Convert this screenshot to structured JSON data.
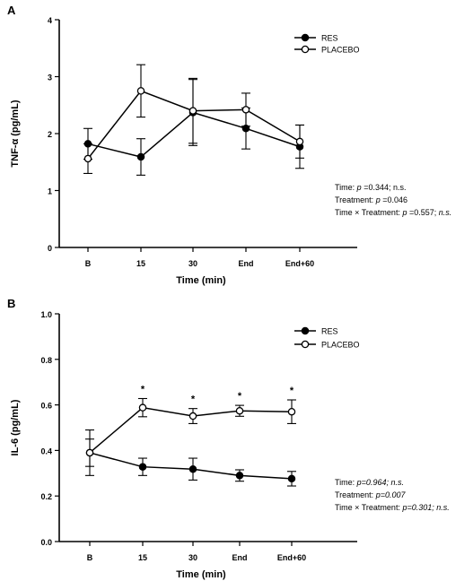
{
  "chart_data": [
    {
      "panel_label": "A",
      "type": "line",
      "ylabel": "TNF-α (pg/mL)",
      "xlabel": "Time (min)",
      "categories": [
        "B",
        "15",
        "30",
        "End",
        "End+60"
      ],
      "ylim": [
        0,
        4
      ],
      "yticks": [
        "0",
        "1",
        "2",
        "3",
        "4"
      ],
      "series": [
        {
          "name": "RES",
          "marker": "filled",
          "values": [
            1.82,
            1.59,
            2.37,
            2.09,
            1.77
          ],
          "errors": [
            0.27,
            0.32,
            0.58,
            0.36,
            0.38
          ]
        },
        {
          "name": "PLACEBO",
          "marker": "open",
          "values": [
            1.56,
            2.75,
            2.4,
            2.42,
            1.86
          ],
          "errors": [
            0.26,
            0.46,
            0.57,
            0.29,
            0.29
          ]
        }
      ],
      "significance": [
        "",
        "",
        "",
        "",
        ""
      ],
      "stats": [
        [
          {
            "t": "Time: "
          },
          {
            "t": "p",
            "i": true
          },
          {
            "t": " =0.344; n.s."
          }
        ],
        [
          {
            "t": "Treatment: "
          },
          {
            "t": "p",
            "i": true
          },
          {
            "t": " =0.046"
          }
        ],
        [
          {
            "t": "Time × Treatment: "
          },
          {
            "t": "p",
            "i": true
          },
          {
            "t": " =0.557; "
          },
          {
            "t": "n.s.",
            "i": true
          }
        ]
      ]
    },
    {
      "panel_label": "B",
      "type": "line",
      "ylabel": "IL-6 (pg/mL)",
      "xlabel": "Time (min)",
      "categories": [
        "B",
        "15",
        "30",
        "End",
        "End+60"
      ],
      "ylim": [
        0,
        1
      ],
      "yticks": [
        "0.0",
        "0.2",
        "0.4",
        "0.6",
        "0.8",
        "1.0"
      ],
      "series": [
        {
          "name": "RES",
          "marker": "filled",
          "values": [
            0.39,
            0.328,
            0.318,
            0.29,
            0.276
          ],
          "errors": [
            0.06,
            0.038,
            0.048,
            0.025,
            0.032
          ]
        },
        {
          "name": "PLACEBO",
          "marker": "open",
          "values": [
            0.39,
            0.588,
            0.551,
            0.574,
            0.57
          ],
          "errors": [
            0.1,
            0.04,
            0.033,
            0.024,
            0.052
          ]
        }
      ],
      "significance": [
        "",
        "*",
        "*",
        "*",
        "*"
      ],
      "stats": [
        [
          {
            "t": "Time: "
          },
          {
            "t": "p=0.964; n.s.",
            "i": true
          }
        ],
        [
          {
            "t": "Treatment: "
          },
          {
            "t": "p=0.007",
            "i": true
          }
        ],
        [
          {
            "t": "Time × Treatment: "
          },
          {
            "t": "p=0.301; n.s.",
            "i": true
          }
        ]
      ]
    }
  ]
}
